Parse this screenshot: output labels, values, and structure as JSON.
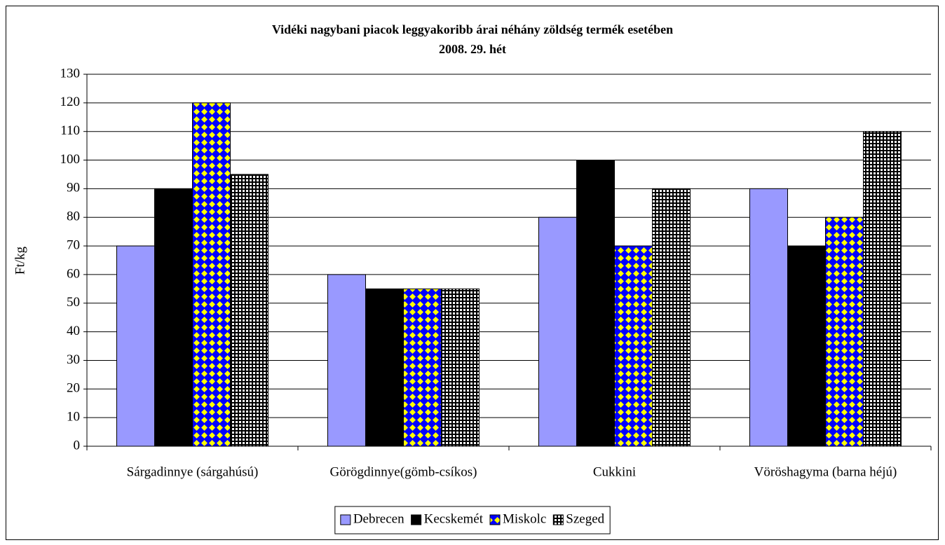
{
  "chart_data": {
    "type": "bar",
    "title": "Vidéki nagybani piacok leggyakoribb árai néhány zöldség termék esetében",
    "subtitle": "2008. 29. hét",
    "y_label": "Ft/kg",
    "categories": [
      "Sárgadinnye (sárgahúsú)",
      "Görögdinnye(gömb-csíkos)",
      "Cukkini",
      "Vöröshagyma (barna héjú)"
    ],
    "series": [
      {
        "name": "Debrecen",
        "color": "#9999ff",
        "pattern": "solid",
        "values": [
          70,
          60,
          80,
          90
        ]
      },
      {
        "name": "Kecskemét",
        "color": "#000000",
        "pattern": "solid",
        "values": [
          90,
          55,
          100,
          70
        ]
      },
      {
        "name": "Miskolc",
        "color": "#0000ff",
        "pattern": "diamonds",
        "pattern_color": "#ffff00",
        "values": [
          120,
          55,
          70,
          80
        ]
      },
      {
        "name": "Szeged",
        "color": "#000000",
        "pattern": "grid",
        "pattern_color": "#ffffff",
        "values": [
          95,
          55,
          90,
          110
        ]
      }
    ],
    "ylim": [
      0,
      130
    ],
    "yticks": [
      0,
      10,
      20,
      30,
      40,
      50,
      60,
      70,
      80,
      90,
      100,
      110,
      120,
      130
    ],
    "grid": true,
    "legend": "bottom"
  }
}
